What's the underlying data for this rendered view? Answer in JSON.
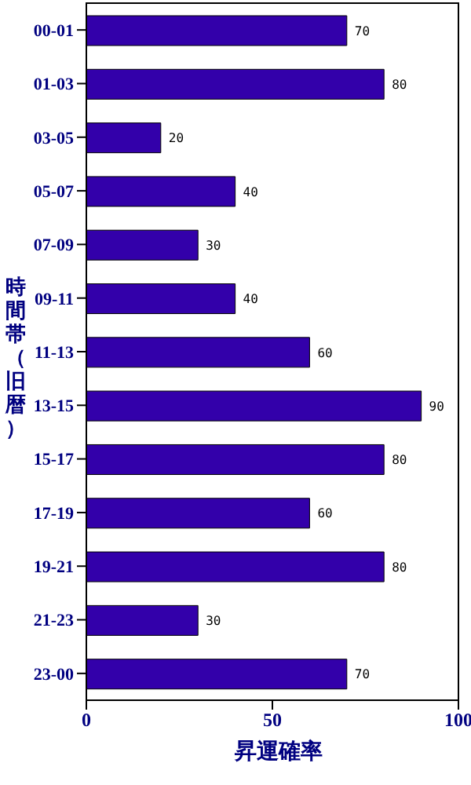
{
  "chart_data": {
    "type": "bar",
    "orientation": "horizontal",
    "xlabel": "昇運確率",
    "ylabel": "時間帯（旧暦）",
    "categories": [
      "00-01",
      "01-03",
      "03-05",
      "05-07",
      "07-09",
      "09-11",
      "11-13",
      "13-15",
      "15-17",
      "17-19",
      "19-21",
      "21-23",
      "23-00"
    ],
    "values": [
      70,
      80,
      20,
      40,
      30,
      40,
      60,
      90,
      80,
      60,
      80,
      30,
      70
    ],
    "color": "#3300aa",
    "xlim": [
      0,
      100
    ],
    "xticks": [
      0,
      50,
      100
    ],
    "grid": false,
    "data_labels": true
  }
}
